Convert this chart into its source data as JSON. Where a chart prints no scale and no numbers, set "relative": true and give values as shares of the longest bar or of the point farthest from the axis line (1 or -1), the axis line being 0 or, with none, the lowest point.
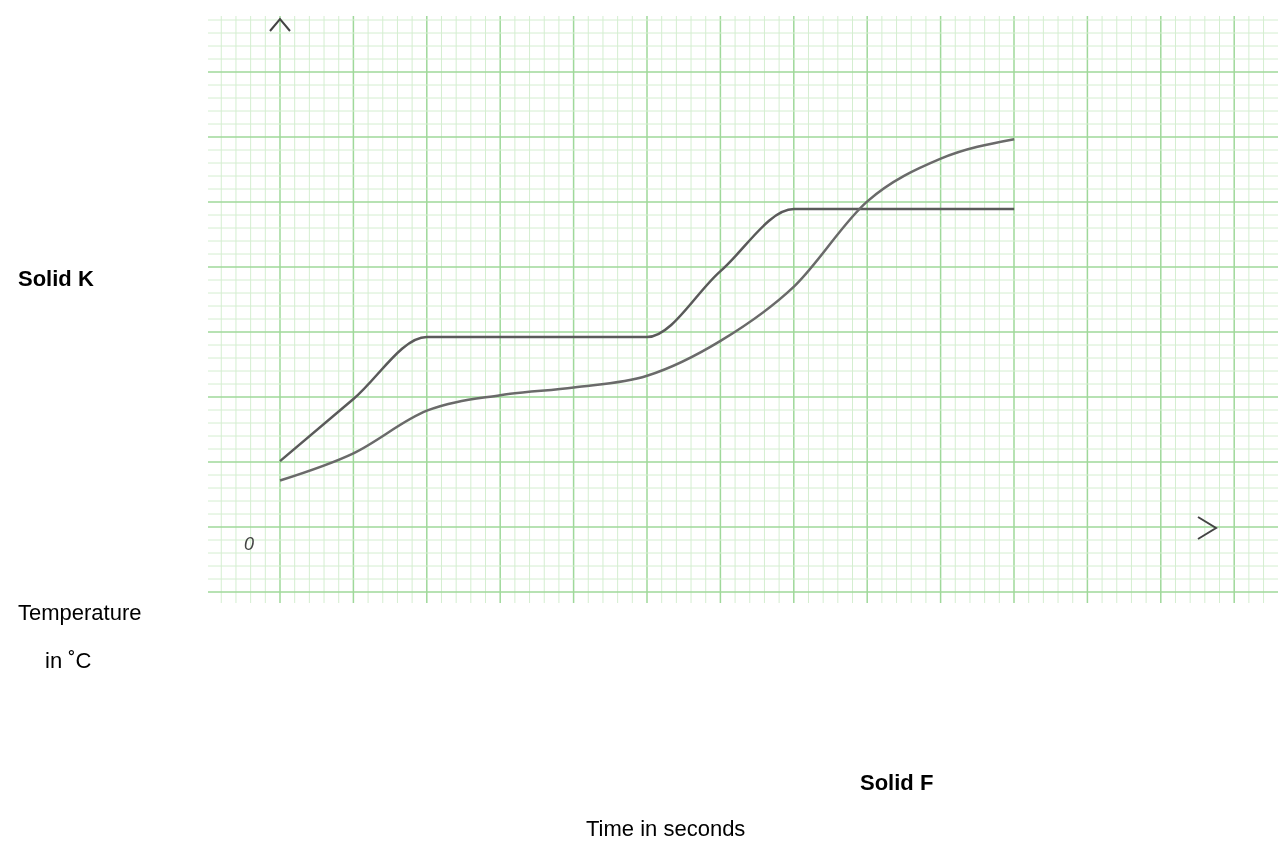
{
  "chart_data": {
    "type": "line",
    "relative": true,
    "grid": true,
    "categories": [
      null,
      null,
      null,
      null,
      null,
      null,
      null,
      null,
      null,
      null,
      null,
      null,
      null
    ],
    "series": [
      {
        "color": "#5a5a5a",
        "values": [
          0.17,
          0.33,
          0.49,
          0.49,
          0.49,
          0.49,
          0.66,
          0.82,
          0.82,
          0.82,
          0.82,
          null,
          null
        ]
      },
      {
        "color": "#6a6a6a",
        "values": [
          0.12,
          0.19,
          0.3,
          0.34,
          0.36,
          0.39,
          0.48,
          0.62,
          0.84,
          0.95,
          1,
          null,
          null
        ]
      }
    ],
    "annotations": [
      "0",
      "Solid K",
      "Solid F",
      "Temperature\nin ˚C",
      "Time in seconds"
    ]
  }
}
